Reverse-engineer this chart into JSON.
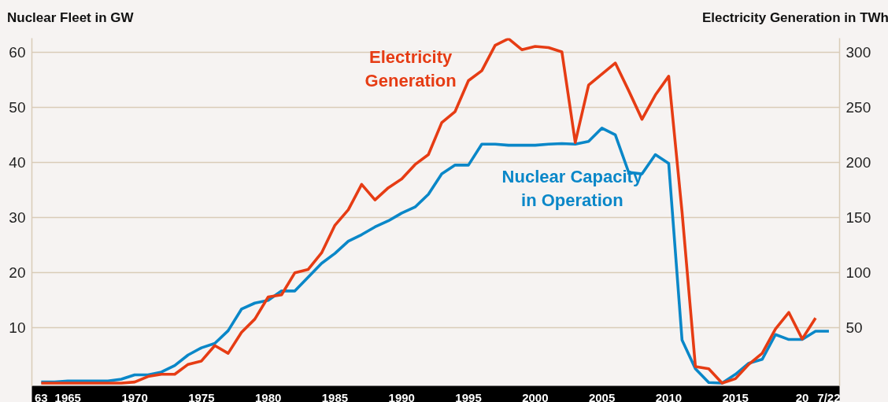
{
  "chart_data": {
    "type": "line",
    "ylabel": "Nuclear Fleet in GW",
    "y2label": "Electricity Generation in TWh",
    "x": [
      1963,
      1964,
      1965,
      1966,
      1967,
      1968,
      1969,
      1970,
      1971,
      1972,
      1973,
      1974,
      1975,
      1976,
      1977,
      1978,
      1979,
      1980,
      1981,
      1982,
      1983,
      1984,
      1985,
      1986,
      1987,
      1988,
      1989,
      1990,
      1991,
      1992,
      1993,
      1994,
      1995,
      1996,
      1997,
      1998,
      1999,
      2000,
      2001,
      2002,
      2003,
      2004,
      2005,
      2006,
      2007,
      2008,
      2009,
      2010,
      2011,
      2012,
      2013,
      2014,
      2015,
      2016,
      2017,
      2018,
      2019,
      2020,
      2021,
      2022
    ],
    "series": [
      {
        "name": "Electricity Generation",
        "color": "#e63c14",
        "axis": "y2",
        "values": [
          0,
          0,
          0,
          0,
          0,
          0,
          0,
          1,
          6,
          8,
          8,
          17,
          20,
          34,
          27,
          46,
          58,
          78,
          80,
          100,
          103,
          118,
          143,
          157,
          180,
          166,
          177,
          185,
          198,
          207,
          236,
          246,
          274,
          283,
          306,
          312,
          302,
          305,
          304,
          300,
          218,
          270,
          280,
          290,
          265,
          239,
          261,
          278,
          155,
          15,
          13,
          0,
          4,
          17,
          27,
          49,
          64,
          40,
          59,
          null
        ]
      },
      {
        "name": "Nuclear Capacity in Operation",
        "color": "#0a87c8",
        "axis": "y",
        "values": [
          0.2,
          0.2,
          0.4,
          0.4,
          0.4,
          0.4,
          0.7,
          1.5,
          1.5,
          2.0,
          3.2,
          5.1,
          6.4,
          7.2,
          9.5,
          13.4,
          14.5,
          15.0,
          16.7,
          16.7,
          19.2,
          21.7,
          23.5,
          25.7,
          26.9,
          28.3,
          29.4,
          30.8,
          31.9,
          34.2,
          37.9,
          39.5,
          39.5,
          43.3,
          43.3,
          43.1,
          43.1,
          43.1,
          43.3,
          43.4,
          43.3,
          43.8,
          46.2,
          45.0,
          38.2,
          37.9,
          41.4,
          39.8,
          7.8,
          2.6,
          0.1,
          0,
          1.6,
          3.6,
          4.3,
          8.8,
          7.9,
          7.9,
          9.4,
          9.4
        ]
      }
    ],
    "xlim": [
      1962.3,
      2022.8
    ],
    "xticks": [
      {
        "value": 1963,
        "label": "63"
      },
      1965,
      1970,
      1975,
      1980,
      1985,
      1990,
      1995,
      2000,
      2005,
      2010,
      2015,
      {
        "value": 2020,
        "label": "20"
      },
      {
        "value": 2022,
        "label": "7/22"
      }
    ],
    "ylim": [
      -0.5,
      62.5
    ],
    "yticks": [
      10,
      20,
      30,
      40,
      50,
      60
    ],
    "y2lim": [
      -2.5,
      312.5
    ],
    "y2ticks": [
      50,
      100,
      150,
      200,
      250,
      300
    ],
    "grid": "y",
    "line_style": "solid",
    "marker": "none"
  }
}
